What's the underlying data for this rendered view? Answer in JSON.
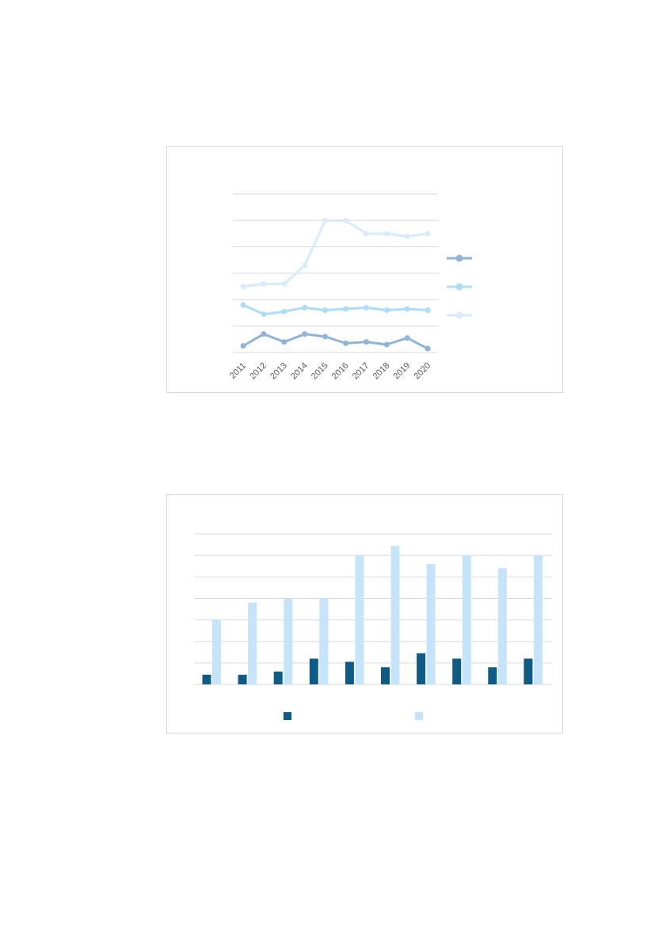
{
  "page": {
    "background_color": "#ffffff",
    "border_color": "#d9d9d9",
    "gridline_color": "#d9d9d9",
    "axis_label_color": "#595959"
  },
  "chart_data": [
    {
      "id": "line-chart",
      "type": "line",
      "title": "",
      "xlabel": "",
      "ylabel": "",
      "x_tick_labels": [
        "2011",
        "2012",
        "2013",
        "2014",
        "2015",
        "2016",
        "2017",
        "2018",
        "2019",
        "2020"
      ],
      "y_tick_labels": [],
      "ylim": [
        0,
        6
      ],
      "gridline_step": 1,
      "grid": true,
      "legend_position": "right",
      "series": [
        {
          "name": "series-steel-blue",
          "color": "#8FB4D6",
          "legend_label": "",
          "values": [
            0.25,
            0.7,
            0.4,
            0.7,
            0.6,
            0.35,
            0.4,
            0.3,
            0.55,
            0.15
          ]
        },
        {
          "name": "series-light-blue",
          "color": "#ADDBFA",
          "legend_label": "",
          "values": [
            1.8,
            1.45,
            1.55,
            1.7,
            1.6,
            1.65,
            1.7,
            1.6,
            1.65,
            1.6
          ]
        },
        {
          "name": "series-pale-blue",
          "color": "#D8EBFC",
          "legend_label": "",
          "values": [
            2.5,
            2.6,
            2.6,
            3.3,
            5.0,
            5.0,
            4.5,
            4.5,
            4.4,
            4.5
          ]
        }
      ]
    },
    {
      "id": "bar-chart",
      "type": "bar",
      "title": "",
      "xlabel": "",
      "ylabel": "",
      "categories": [
        "",
        "",
        "",
        "",
        "",
        "",
        "",
        "",
        "",
        ""
      ],
      "y_tick_labels": [],
      "ylim": [
        0,
        7
      ],
      "gridline_step": 1,
      "grid": true,
      "legend_position": "bottom",
      "series": [
        {
          "name": "series-dark-blue",
          "color": "#0E5C86",
          "legend_label": "",
          "values": [
            0.45,
            0.45,
            0.6,
            1.2,
            1.05,
            0.8,
            1.45,
            1.2,
            0.8,
            1.2
          ]
        },
        {
          "name": "series-light-blue",
          "color": "#C6E4F9",
          "legend_label": "",
          "values": [
            3.0,
            3.8,
            4.0,
            4.0,
            6.0,
            6.45,
            5.6,
            6.0,
            5.4,
            6.0
          ]
        }
      ]
    }
  ]
}
